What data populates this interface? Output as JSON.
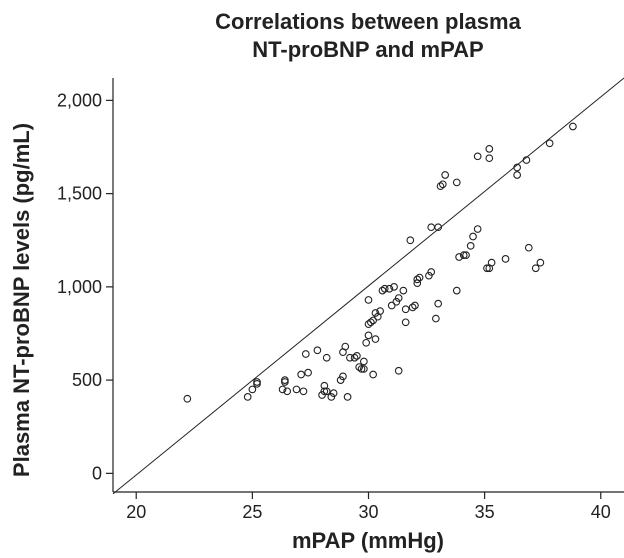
{
  "chart_data": {
    "type": "scatter",
    "title": "Correlations between plasma\nNT-proBNP and mPAP",
    "title_lines": [
      "Correlations between plasma",
      "NT-proBNP and mPAP"
    ],
    "xlabel": "mPAP (mmHg)",
    "ylabel": "Plasma NT-proBNP levels (pg/mL)",
    "xlim": [
      19,
      41
    ],
    "ylim": [
      -100,
      2120
    ],
    "xticks": [
      20,
      25,
      30,
      35,
      40
    ],
    "yticks": [
      0,
      500,
      1000,
      1500,
      2000
    ],
    "xtick_labels": [
      "20",
      "25",
      "30",
      "35",
      "40"
    ],
    "ytick_labels": [
      "0",
      "500",
      "1,000",
      "1,500",
      "2,000"
    ],
    "grid": false,
    "marker": "open-circle",
    "marker_color": "#222222",
    "reference_line": {
      "x": [
        19,
        41
      ],
      "y": [
        -110,
        2120
      ]
    },
    "points": [
      {
        "x": 22.2,
        "y": 400
      },
      {
        "x": 24.8,
        "y": 410
      },
      {
        "x": 25.0,
        "y": 450
      },
      {
        "x": 25.2,
        "y": 480
      },
      {
        "x": 25.2,
        "y": 490
      },
      {
        "x": 26.3,
        "y": 450
      },
      {
        "x": 26.4,
        "y": 490
      },
      {
        "x": 26.4,
        "y": 500
      },
      {
        "x": 26.5,
        "y": 440
      },
      {
        "x": 26.9,
        "y": 450
      },
      {
        "x": 27.1,
        "y": 530
      },
      {
        "x": 27.2,
        "y": 440
      },
      {
        "x": 27.3,
        "y": 640
      },
      {
        "x": 27.4,
        "y": 540
      },
      {
        "x": 27.8,
        "y": 660
      },
      {
        "x": 28.0,
        "y": 420
      },
      {
        "x": 28.1,
        "y": 440
      },
      {
        "x": 28.1,
        "y": 470
      },
      {
        "x": 28.2,
        "y": 440
      },
      {
        "x": 28.2,
        "y": 620
      },
      {
        "x": 28.4,
        "y": 410
      },
      {
        "x": 28.5,
        "y": 430
      },
      {
        "x": 28.8,
        "y": 500
      },
      {
        "x": 28.9,
        "y": 520
      },
      {
        "x": 28.9,
        "y": 650
      },
      {
        "x": 29.0,
        "y": 680
      },
      {
        "x": 29.1,
        "y": 410
      },
      {
        "x": 29.2,
        "y": 620
      },
      {
        "x": 29.4,
        "y": 620
      },
      {
        "x": 29.5,
        "y": 630
      },
      {
        "x": 29.6,
        "y": 570
      },
      {
        "x": 29.7,
        "y": 560
      },
      {
        "x": 29.8,
        "y": 560
      },
      {
        "x": 29.8,
        "y": 600
      },
      {
        "x": 29.9,
        "y": 700
      },
      {
        "x": 30.0,
        "y": 740
      },
      {
        "x": 30.0,
        "y": 800
      },
      {
        "x": 30.0,
        "y": 930
      },
      {
        "x": 30.1,
        "y": 810
      },
      {
        "x": 30.2,
        "y": 530
      },
      {
        "x": 30.2,
        "y": 820
      },
      {
        "x": 30.3,
        "y": 860
      },
      {
        "x": 30.3,
        "y": 720
      },
      {
        "x": 30.4,
        "y": 840
      },
      {
        "x": 30.5,
        "y": 870
      },
      {
        "x": 30.6,
        "y": 980
      },
      {
        "x": 30.7,
        "y": 990
      },
      {
        "x": 30.9,
        "y": 990
      },
      {
        "x": 31.0,
        "y": 900
      },
      {
        "x": 31.1,
        "y": 1000
      },
      {
        "x": 31.2,
        "y": 920
      },
      {
        "x": 31.3,
        "y": 940
      },
      {
        "x": 31.3,
        "y": 550
      },
      {
        "x": 31.5,
        "y": 980
      },
      {
        "x": 31.6,
        "y": 880
      },
      {
        "x": 31.6,
        "y": 810
      },
      {
        "x": 31.8,
        "y": 1250
      },
      {
        "x": 31.9,
        "y": 890
      },
      {
        "x": 32.0,
        "y": 900
      },
      {
        "x": 32.1,
        "y": 1020
      },
      {
        "x": 32.1,
        "y": 1040
      },
      {
        "x": 32.2,
        "y": 1050
      },
      {
        "x": 32.6,
        "y": 1060
      },
      {
        "x": 32.7,
        "y": 1080
      },
      {
        "x": 32.7,
        "y": 1320
      },
      {
        "x": 32.9,
        "y": 830
      },
      {
        "x": 33.0,
        "y": 910
      },
      {
        "x": 33.0,
        "y": 1320
      },
      {
        "x": 33.1,
        "y": 1540
      },
      {
        "x": 33.2,
        "y": 1550
      },
      {
        "x": 33.3,
        "y": 1600
      },
      {
        "x": 33.8,
        "y": 980
      },
      {
        "x": 33.9,
        "y": 1160
      },
      {
        "x": 34.1,
        "y": 1170
      },
      {
        "x": 34.2,
        "y": 1170
      },
      {
        "x": 34.4,
        "y": 1220
      },
      {
        "x": 34.5,
        "y": 1270
      },
      {
        "x": 34.7,
        "y": 1310
      },
      {
        "x": 33.8,
        "y": 1560
      },
      {
        "x": 34.7,
        "y": 1700
      },
      {
        "x": 35.1,
        "y": 1100
      },
      {
        "x": 35.2,
        "y": 1100
      },
      {
        "x": 35.3,
        "y": 1130
      },
      {
        "x": 35.2,
        "y": 1740
      },
      {
        "x": 35.2,
        "y": 1690
      },
      {
        "x": 35.9,
        "y": 1150
      },
      {
        "x": 36.4,
        "y": 1600
      },
      {
        "x": 36.4,
        "y": 1640
      },
      {
        "x": 36.8,
        "y": 1680
      },
      {
        "x": 36.9,
        "y": 1210
      },
      {
        "x": 37.2,
        "y": 1100
      },
      {
        "x": 37.4,
        "y": 1130
      },
      {
        "x": 37.8,
        "y": 1770
      },
      {
        "x": 38.8,
        "y": 1860
      }
    ]
  }
}
